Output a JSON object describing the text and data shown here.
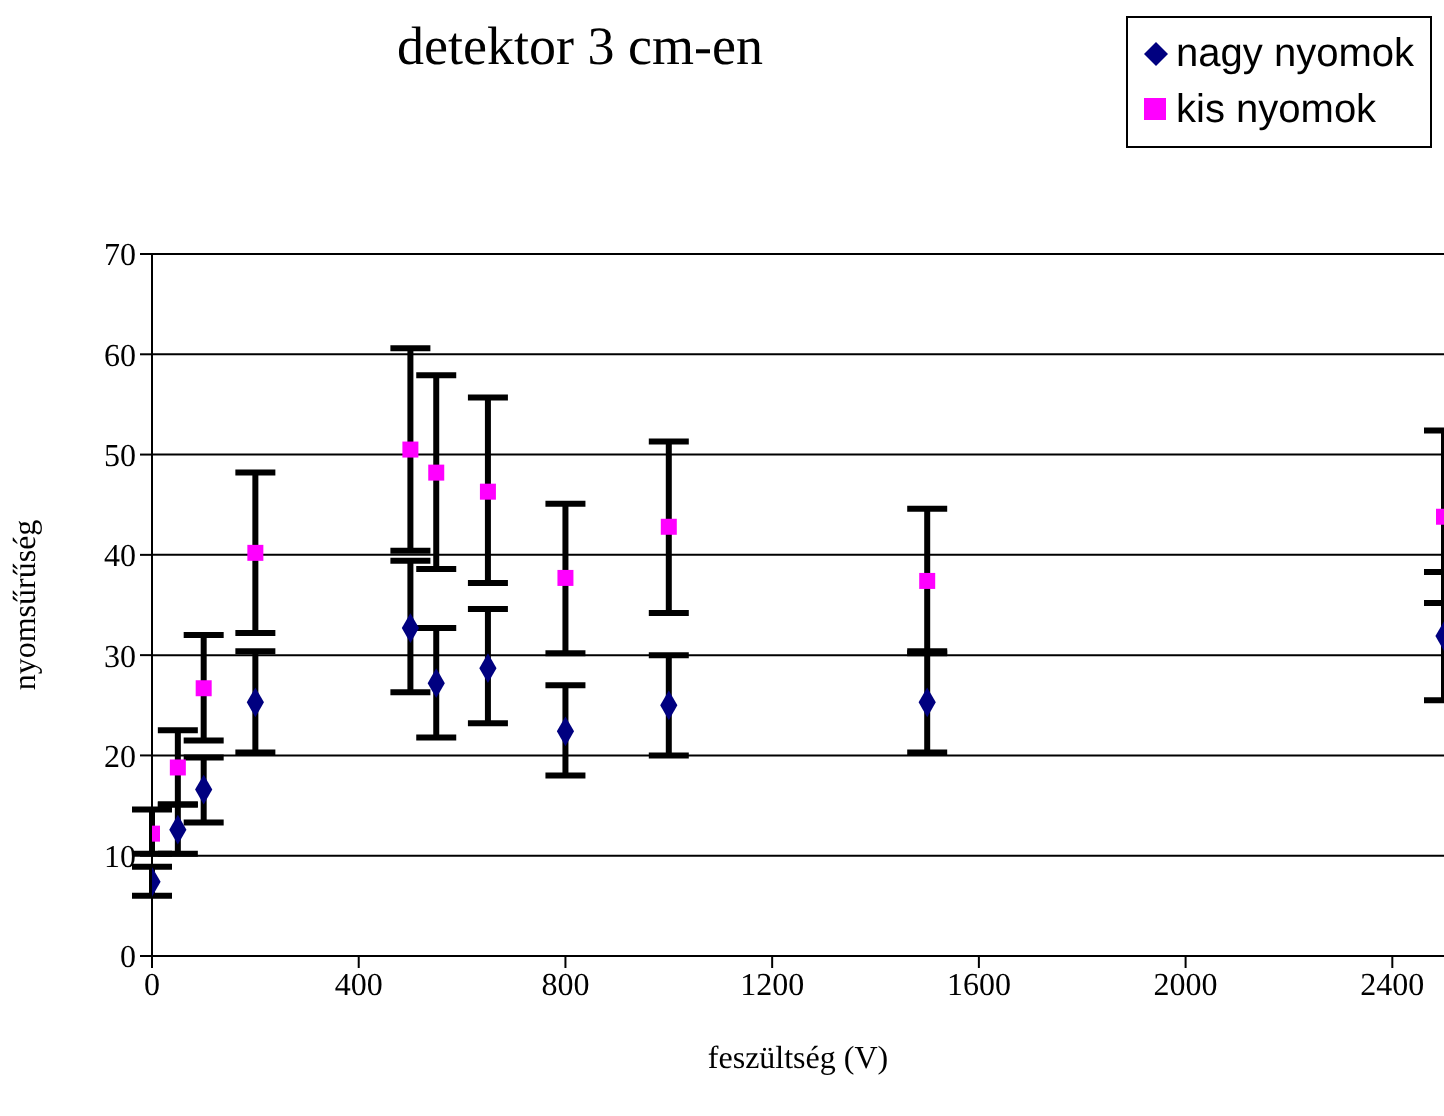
{
  "chart_data": {
    "type": "scatter",
    "title": "detektor 3 cm-en",
    "xlabel": "feszültség (V)",
    "ylabel": "nyomsűrűség",
    "x": [
      0,
      50,
      100,
      200,
      500,
      550,
      650,
      800,
      1000,
      1500,
      2500
    ],
    "xlim": [
      0,
      2500
    ],
    "xticks": [
      0,
      400,
      800,
      1200,
      1600,
      2000,
      2400
    ],
    "ylim": [
      0,
      70
    ],
    "yticks": [
      0,
      10,
      20,
      30,
      40,
      50,
      60,
      70
    ],
    "grid": "y",
    "legend": "top right",
    "series": [
      {
        "name": "nagy nyomok",
        "color": "#000080",
        "marker": "diamond",
        "values": [
          7.4,
          12.6,
          16.6,
          25.3,
          32.7,
          27.2,
          28.7,
          22.4,
          25.0,
          25.3,
          31.9
        ],
        "errors": [
          [
            6.0,
            8.9
          ],
          [
            10.2,
            15.1
          ],
          [
            13.3,
            19.8
          ],
          [
            20.3,
            30.4
          ],
          [
            26.3,
            39.4
          ],
          [
            21.8,
            32.7
          ],
          [
            23.2,
            34.6
          ],
          [
            18.0,
            27.0
          ],
          [
            20.0,
            30.0
          ],
          [
            20.3,
            30.4
          ],
          [
            25.5,
            38.3
          ]
        ]
      },
      {
        "name": "kis nyomok",
        "color": "#ff00ff",
        "marker": "square",
        "values": [
          12.2,
          18.8,
          26.7,
          40.2,
          50.5,
          48.2,
          46.3,
          37.7,
          42.8,
          37.4,
          43.8
        ],
        "errors": [
          [
            10.2,
            14.6
          ],
          [
            15.1,
            22.5
          ],
          [
            21.5,
            32.0
          ],
          [
            32.2,
            48.2
          ],
          [
            40.4,
            60.6
          ],
          [
            38.6,
            57.9
          ],
          [
            37.2,
            55.7
          ],
          [
            30.2,
            45.1
          ],
          [
            34.2,
            51.3
          ],
          [
            30.2,
            44.6
          ],
          [
            35.2,
            52.4
          ]
        ]
      }
    ]
  }
}
